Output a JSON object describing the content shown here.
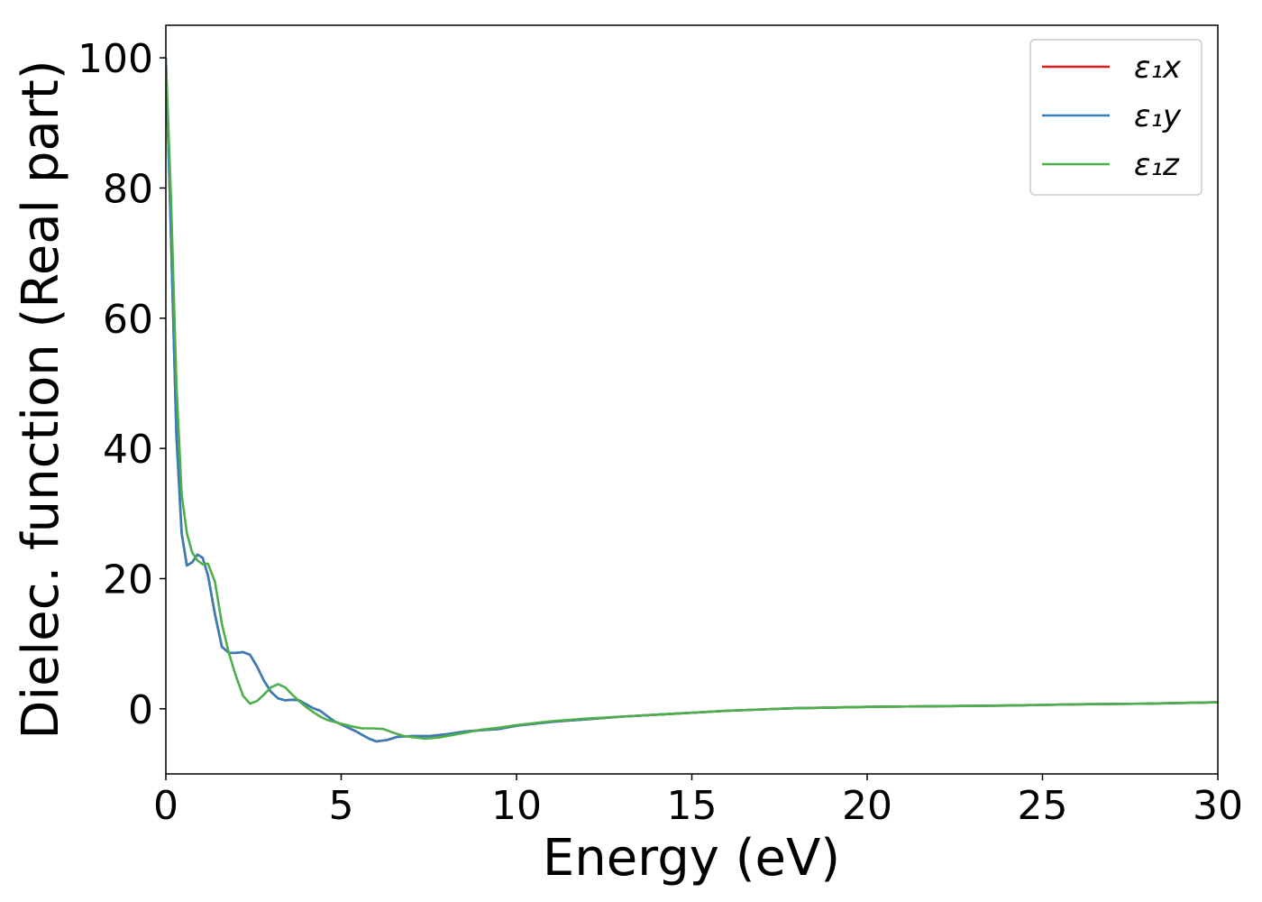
{
  "chart_data": {
    "type": "line",
    "xlabel": "Energy (eV)",
    "ylabel": "Dielec. function (Real part)",
    "xlim": [
      0,
      30
    ],
    "ylim": [
      -10,
      105
    ],
    "xticks": [
      0,
      5,
      10,
      15,
      20,
      25,
      30
    ],
    "yticks": [
      0,
      20,
      40,
      60,
      80,
      100
    ],
    "grid": false,
    "legend_position": "top-right",
    "series": [
      {
        "name": "ε₁x",
        "color": "#e41a1c",
        "x": [
          0,
          0.15,
          0.3,
          0.45,
          0.6,
          0.75,
          0.9,
          1.05,
          1.2,
          1.4,
          1.6,
          1.8,
          2.0,
          2.2,
          2.4,
          2.6,
          2.8,
          3.0,
          3.2,
          3.4,
          3.6,
          3.8,
          4.0,
          4.2,
          4.4,
          4.6,
          4.8,
          5.0,
          5.2,
          5.4,
          5.6,
          5.8,
          6.0,
          6.3,
          6.6,
          7.0,
          7.5,
          8.0,
          8.5,
          9.0,
          9.5,
          10,
          11,
          12,
          13,
          14,
          15,
          16,
          17,
          18,
          19,
          20,
          22,
          24,
          26,
          28,
          30
        ],
        "values": [
          100,
          72,
          42,
          27,
          22,
          22.5,
          23.7,
          23.2,
          20.5,
          14.5,
          9.5,
          8.6,
          8.6,
          8.7,
          8.3,
          6.5,
          4.3,
          2.6,
          1.6,
          1.3,
          1.4,
          1.3,
          0.7,
          0.1,
          -0.3,
          -1.1,
          -1.9,
          -2.4,
          -2.9,
          -3.4,
          -4.0,
          -4.6,
          -5.0,
          -4.8,
          -4.3,
          -4.2,
          -4.2,
          -3.9,
          -3.5,
          -3.3,
          -3.1,
          -2.6,
          -2.0,
          -1.6,
          -1.2,
          -0.9,
          -0.6,
          -0.3,
          -0.1,
          0.1,
          0.2,
          0.3,
          0.4,
          0.5,
          0.7,
          0.8,
          1.0
        ]
      },
      {
        "name": "ε₁y",
        "color": "#377eb8",
        "x": [
          0,
          0.15,
          0.3,
          0.45,
          0.6,
          0.75,
          0.9,
          1.05,
          1.2,
          1.4,
          1.6,
          1.8,
          2.0,
          2.2,
          2.4,
          2.6,
          2.8,
          3.0,
          3.2,
          3.4,
          3.6,
          3.8,
          4.0,
          4.2,
          4.4,
          4.6,
          4.8,
          5.0,
          5.2,
          5.4,
          5.6,
          5.8,
          6.0,
          6.3,
          6.6,
          7.0,
          7.5,
          8.0,
          8.5,
          9.0,
          9.5,
          10,
          11,
          12,
          13,
          14,
          15,
          16,
          17,
          18,
          19,
          20,
          22,
          24,
          26,
          28,
          30
        ],
        "values": [
          100,
          72,
          42,
          27,
          22,
          22.5,
          23.7,
          23.2,
          20.5,
          14.5,
          9.5,
          8.6,
          8.6,
          8.7,
          8.3,
          6.5,
          4.3,
          2.6,
          1.6,
          1.3,
          1.4,
          1.3,
          0.7,
          0.1,
          -0.3,
          -1.1,
          -1.9,
          -2.4,
          -2.9,
          -3.4,
          -4.0,
          -4.6,
          -5.0,
          -4.8,
          -4.3,
          -4.2,
          -4.2,
          -3.9,
          -3.5,
          -3.3,
          -3.1,
          -2.6,
          -2.0,
          -1.6,
          -1.2,
          -0.9,
          -0.6,
          -0.3,
          -0.1,
          0.1,
          0.2,
          0.3,
          0.4,
          0.5,
          0.7,
          0.8,
          1.0
        ]
      },
      {
        "name": "ε₁z",
        "color": "#4daf4a",
        "x": [
          0,
          0.15,
          0.3,
          0.45,
          0.6,
          0.75,
          0.9,
          1.05,
          1.2,
          1.4,
          1.6,
          1.8,
          2.0,
          2.2,
          2.4,
          2.6,
          2.8,
          3.0,
          3.2,
          3.4,
          3.6,
          3.8,
          4.0,
          4.2,
          4.4,
          4.6,
          4.8,
          5.0,
          5.3,
          5.6,
          5.9,
          6.2,
          6.5,
          6.8,
          7.1,
          7.4,
          7.8,
          8.2,
          8.6,
          9.0,
          9.5,
          10,
          11,
          12,
          13,
          14,
          15,
          16,
          17,
          18,
          19,
          20,
          22,
          24,
          26,
          28,
          30
        ],
        "values": [
          100,
          78,
          50,
          33,
          27,
          24,
          22.8,
          22.2,
          22.3,
          19.5,
          13,
          8.5,
          5.0,
          2.0,
          0.8,
          1.2,
          2.2,
          3.3,
          3.8,
          3.3,
          2.2,
          1.2,
          0.3,
          -0.5,
          -1.2,
          -1.7,
          -2.0,
          -2.3,
          -2.7,
          -3.0,
          -3.0,
          -3.1,
          -3.7,
          -4.2,
          -4.4,
          -4.6,
          -4.4,
          -4.0,
          -3.6,
          -3.2,
          -2.9,
          -2.5,
          -1.9,
          -1.5,
          -1.2,
          -0.9,
          -0.6,
          -0.3,
          -0.1,
          0.1,
          0.2,
          0.3,
          0.4,
          0.5,
          0.7,
          0.8,
          1.0
        ]
      }
    ]
  }
}
